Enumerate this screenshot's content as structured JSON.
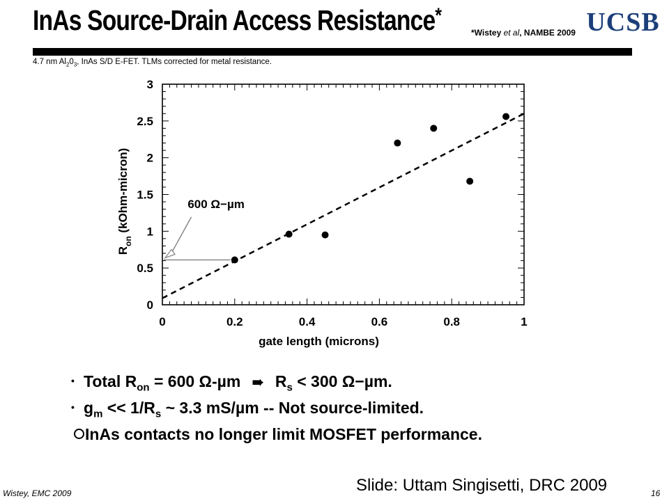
{
  "header": {
    "title": "InAs Source-Drain Access Resistance",
    "title_star": "*",
    "citation_prefix": "*Wistey ",
    "citation_etal": "et al",
    "citation_suffix": ", NAMBE 2009",
    "logo_text": "UCSB",
    "logo_color": "#1c3f7a"
  },
  "subtitle": {
    "part1": "4.7 nm Al",
    "sub1": "2",
    "part2": "0",
    "sub2": "3",
    "part3": ", InAs S/D E-FET. TLMs corrected for metal resistance."
  },
  "chart_data": {
    "type": "scatter",
    "xlabel": "gate length (microns)",
    "ylabel_main": "R",
    "ylabel_sub": "on",
    "ylabel_rest": " (kOhm-micron)",
    "xlim": [
      0,
      1
    ],
    "ylim": [
      0,
      3
    ],
    "xticks": [
      {
        "v": 0,
        "label": "0"
      },
      {
        "v": 0.2,
        "label": "0.2"
      },
      {
        "v": 0.4,
        "label": "0.4"
      },
      {
        "v": 0.6,
        "label": "0.6"
      },
      {
        "v": 0.8,
        "label": "0.8"
      },
      {
        "v": 1,
        "label": "1"
      }
    ],
    "yticks": [
      {
        "v": 0,
        "label": "0"
      },
      {
        "v": 0.5,
        "label": "0.5"
      },
      {
        "v": 1,
        "label": "1"
      },
      {
        "v": 1.5,
        "label": "1.5"
      },
      {
        "v": 2,
        "label": "2"
      },
      {
        "v": 2.5,
        "label": "2.5"
      },
      {
        "v": 3,
        "label": "3"
      }
    ],
    "points": [
      {
        "x": 0.2,
        "y": 0.61
      },
      {
        "x": 0.35,
        "y": 0.96
      },
      {
        "x": 0.45,
        "y": 0.95
      },
      {
        "x": 0.65,
        "y": 2.2
      },
      {
        "x": 0.75,
        "y": 2.4
      },
      {
        "x": 0.85,
        "y": 1.68
      },
      {
        "x": 0.95,
        "y": 2.56
      }
    ],
    "fit_line": {
      "x0": 0.0,
      "y0": 0.09,
      "x1": 1.0,
      "y1": 2.6
    },
    "annotation": {
      "text": "600 Ω−µm",
      "target_x": 0.0,
      "target_y": 0.61,
      "text_x": 0.07,
      "text_y": 1.22
    },
    "grid": false,
    "legend": "none"
  },
  "bullets": [
    {
      "marker": "•",
      "a": "Total R",
      "a_sub": "on",
      "b": " = 600 Ω-µm ",
      "arrow": "➠",
      "c": " R",
      "c_sub": "s",
      "d": " < 300 Ω−µm."
    },
    {
      "marker": "•",
      "a": "g",
      "a_sub": "m",
      "b": " << 1/R",
      "b_sub": "s",
      "c": " ~ 3.3 mS/µm -- Not source-limited."
    },
    {
      "c": "InAs contacts no longer limit MOSFET performance."
    }
  ],
  "footer": {
    "credit": "Slide: Uttam Singisetti, DRC 2009",
    "left": "Wistey, EMC 2009",
    "page": "16"
  }
}
